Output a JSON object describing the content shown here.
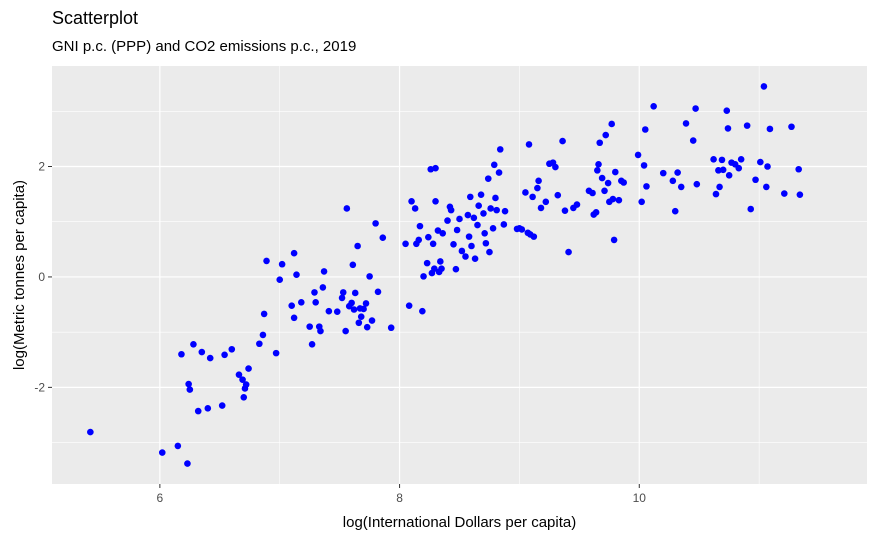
{
  "chart_data": {
    "type": "scatter",
    "title": "Scatterplot",
    "subtitle": "GNI p.c. (PPP) and CO2 emissions p.c., 2019",
    "xlabel": "log(International Dollars per capita)",
    "ylabel": "log(Metric tonnes per capita)",
    "xlim": [
      5.1,
      11.9
    ],
    "ylim": [
      -3.75,
      3.82
    ],
    "x_ticks": [
      6,
      8,
      10
    ],
    "y_ticks": [
      -2,
      0,
      2
    ],
    "x_tick_labels": [
      "6",
      "8",
      "10"
    ],
    "y_tick_labels": [
      "-2",
      "0",
      "2"
    ],
    "grid": true,
    "point_color": "#0000ff",
    "panel_color": "#ebebeb",
    "grid_color": "#ffffff",
    "points": [
      [
        5.42,
        -2.81
      ],
      [
        6.02,
        -3.18
      ],
      [
        6.15,
        -3.06
      ],
      [
        6.23,
        -3.38
      ],
      [
        6.18,
        -1.4
      ],
      [
        6.24,
        -1.94
      ],
      [
        6.25,
        -2.04
      ],
      [
        6.28,
        -1.22
      ],
      [
        6.32,
        -2.43
      ],
      [
        6.35,
        -1.36
      ],
      [
        6.4,
        -2.38
      ],
      [
        6.42,
        -1.47
      ],
      [
        6.52,
        -2.33
      ],
      [
        6.54,
        -1.41
      ],
      [
        6.6,
        -1.31
      ],
      [
        6.66,
        -1.77
      ],
      [
        6.69,
        -1.86
      ],
      [
        6.7,
        -2.18
      ],
      [
        6.71,
        -2.02
      ],
      [
        6.72,
        -1.95
      ],
      [
        6.74,
        -1.66
      ],
      [
        6.83,
        -1.21
      ],
      [
        6.86,
        -1.05
      ],
      [
        6.87,
        -0.67
      ],
      [
        6.89,
        0.29
      ],
      [
        6.97,
        -1.38
      ],
      [
        7.0,
        -0.05
      ],
      [
        7.02,
        0.23
      ],
      [
        7.1,
        -0.52
      ],
      [
        7.12,
        -0.74
      ],
      [
        7.12,
        0.43
      ],
      [
        7.14,
        0.04
      ],
      [
        7.18,
        -0.46
      ],
      [
        7.25,
        -0.9
      ],
      [
        7.27,
        -1.22
      ],
      [
        7.29,
        -0.28
      ],
      [
        7.3,
        -0.46
      ],
      [
        7.33,
        -0.9
      ],
      [
        7.34,
        -0.98
      ],
      [
        7.36,
        -0.19
      ],
      [
        7.37,
        0.1
      ],
      [
        7.41,
        -0.62
      ],
      [
        7.48,
        -0.63
      ],
      [
        7.52,
        -0.38
      ],
      [
        7.53,
        -0.28
      ],
      [
        7.55,
        -0.98
      ],
      [
        7.56,
        1.24
      ],
      [
        7.58,
        -0.53
      ],
      [
        7.6,
        -0.47
      ],
      [
        7.61,
        0.22
      ],
      [
        7.62,
        -0.59
      ],
      [
        7.63,
        -0.29
      ],
      [
        7.65,
        0.56
      ],
      [
        7.66,
        -0.83
      ],
      [
        7.67,
        -0.57
      ],
      [
        7.68,
        -0.72
      ],
      [
        7.7,
        -0.58
      ],
      [
        7.72,
        -0.48
      ],
      [
        7.73,
        -0.91
      ],
      [
        7.75,
        0.01
      ],
      [
        7.77,
        -0.79
      ],
      [
        7.8,
        0.97
      ],
      [
        7.82,
        -0.27
      ],
      [
        7.86,
        0.71
      ],
      [
        7.93,
        -0.92
      ],
      [
        8.05,
        0.6
      ],
      [
        8.08,
        -0.52
      ],
      [
        8.1,
        1.37
      ],
      [
        8.13,
        1.24
      ],
      [
        8.14,
        0.6
      ],
      [
        8.16,
        0.67
      ],
      [
        8.17,
        0.92
      ],
      [
        8.19,
        -0.62
      ],
      [
        8.2,
        0.01
      ],
      [
        8.23,
        0.25
      ],
      [
        8.24,
        0.72
      ],
      [
        8.26,
        1.95
      ],
      [
        8.27,
        0.07
      ],
      [
        8.28,
        0.6
      ],
      [
        8.29,
        0.15
      ],
      [
        8.3,
        1.97
      ],
      [
        8.3,
        1.37
      ],
      [
        8.32,
        0.84
      ],
      [
        8.33,
        0.09
      ],
      [
        8.34,
        0.28
      ],
      [
        8.35,
        0.15
      ],
      [
        8.36,
        0.79
      ],
      [
        8.4,
        1.02
      ],
      [
        8.42,
        1.27
      ],
      [
        8.43,
        1.21
      ],
      [
        8.45,
        0.59
      ],
      [
        8.47,
        0.14
      ],
      [
        8.48,
        0.85
      ],
      [
        8.5,
        1.05
      ],
      [
        8.52,
        0.47
      ],
      [
        8.55,
        0.37
      ],
      [
        8.57,
        1.12
      ],
      [
        8.58,
        0.73
      ],
      [
        8.59,
        1.45
      ],
      [
        8.6,
        0.56
      ],
      [
        8.62,
        1.07
      ],
      [
        8.63,
        0.33
      ],
      [
        8.65,
        0.94
      ],
      [
        8.66,
        1.29
      ],
      [
        8.68,
        1.49
      ],
      [
        8.7,
        1.15
      ],
      [
        8.71,
        0.79
      ],
      [
        8.72,
        0.61
      ],
      [
        8.74,
        1.78
      ],
      [
        8.75,
        0.45
      ],
      [
        8.76,
        1.24
      ],
      [
        8.78,
        0.88
      ],
      [
        8.79,
        2.03
      ],
      [
        8.8,
        1.43
      ],
      [
        8.81,
        1.21
      ],
      [
        8.83,
        1.89
      ],
      [
        8.84,
        2.31
      ],
      [
        8.87,
        0.95
      ],
      [
        8.88,
        1.19
      ],
      [
        8.98,
        0.87
      ],
      [
        9.0,
        0.88
      ],
      [
        9.02,
        0.86
      ],
      [
        9.05,
        1.53
      ],
      [
        9.07,
        0.8
      ],
      [
        9.08,
        2.4
      ],
      [
        9.09,
        0.77
      ],
      [
        9.11,
        1.45
      ],
      [
        9.12,
        0.73
      ],
      [
        9.15,
        1.61
      ],
      [
        9.16,
        1.74
      ],
      [
        9.18,
        1.25
      ],
      [
        9.22,
        1.36
      ],
      [
        9.25,
        2.05
      ],
      [
        9.28,
        2.07
      ],
      [
        9.3,
        1.99
      ],
      [
        9.32,
        1.48
      ],
      [
        9.36,
        2.46
      ],
      [
        9.38,
        1.2
      ],
      [
        9.41,
        0.45
      ],
      [
        9.45,
        1.25
      ],
      [
        9.48,
        1.31
      ],
      [
        9.58,
        1.56
      ],
      [
        9.61,
        1.52
      ],
      [
        9.62,
        1.13
      ],
      [
        9.64,
        1.17
      ],
      [
        9.65,
        1.93
      ],
      [
        9.66,
        2.04
      ],
      [
        9.67,
        2.43
      ],
      [
        9.69,
        1.79
      ],
      [
        9.71,
        1.56
      ],
      [
        9.72,
        2.57
      ],
      [
        9.74,
        1.7
      ],
      [
        9.75,
        1.36
      ],
      [
        9.77,
        2.77
      ],
      [
        9.78,
        1.41
      ],
      [
        9.79,
        0.67
      ],
      [
        9.8,
        1.9
      ],
      [
        9.83,
        1.39
      ],
      [
        9.85,
        1.74
      ],
      [
        9.87,
        1.71
      ],
      [
        9.99,
        2.21
      ],
      [
        10.02,
        1.36
      ],
      [
        10.04,
        2.02
      ],
      [
        10.05,
        2.67
      ],
      [
        10.06,
        1.64
      ],
      [
        10.12,
        3.09
      ],
      [
        10.2,
        1.88
      ],
      [
        10.28,
        1.74
      ],
      [
        10.3,
        1.19
      ],
      [
        10.32,
        1.89
      ],
      [
        10.35,
        1.63
      ],
      [
        10.39,
        2.78
      ],
      [
        10.45,
        2.47
      ],
      [
        10.47,
        3.05
      ],
      [
        10.48,
        1.68
      ],
      [
        10.62,
        2.13
      ],
      [
        10.64,
        1.5
      ],
      [
        10.66,
        1.93
      ],
      [
        10.67,
        1.63
      ],
      [
        10.69,
        2.12
      ],
      [
        10.7,
        1.94
      ],
      [
        10.73,
        3.01
      ],
      [
        10.74,
        2.69
      ],
      [
        10.75,
        1.84
      ],
      [
        10.77,
        2.07
      ],
      [
        10.8,
        2.04
      ],
      [
        10.83,
        1.97
      ],
      [
        10.85,
        2.13
      ],
      [
        10.9,
        2.74
      ],
      [
        10.93,
        1.23
      ],
      [
        10.97,
        1.76
      ],
      [
        11.01,
        2.08
      ],
      [
        11.04,
        3.45
      ],
      [
        11.06,
        1.63
      ],
      [
        11.07,
        2.0
      ],
      [
        11.09,
        2.68
      ],
      [
        11.21,
        1.51
      ],
      [
        11.27,
        2.72
      ],
      [
        11.33,
        1.95
      ],
      [
        11.34,
        1.49
      ]
    ]
  }
}
